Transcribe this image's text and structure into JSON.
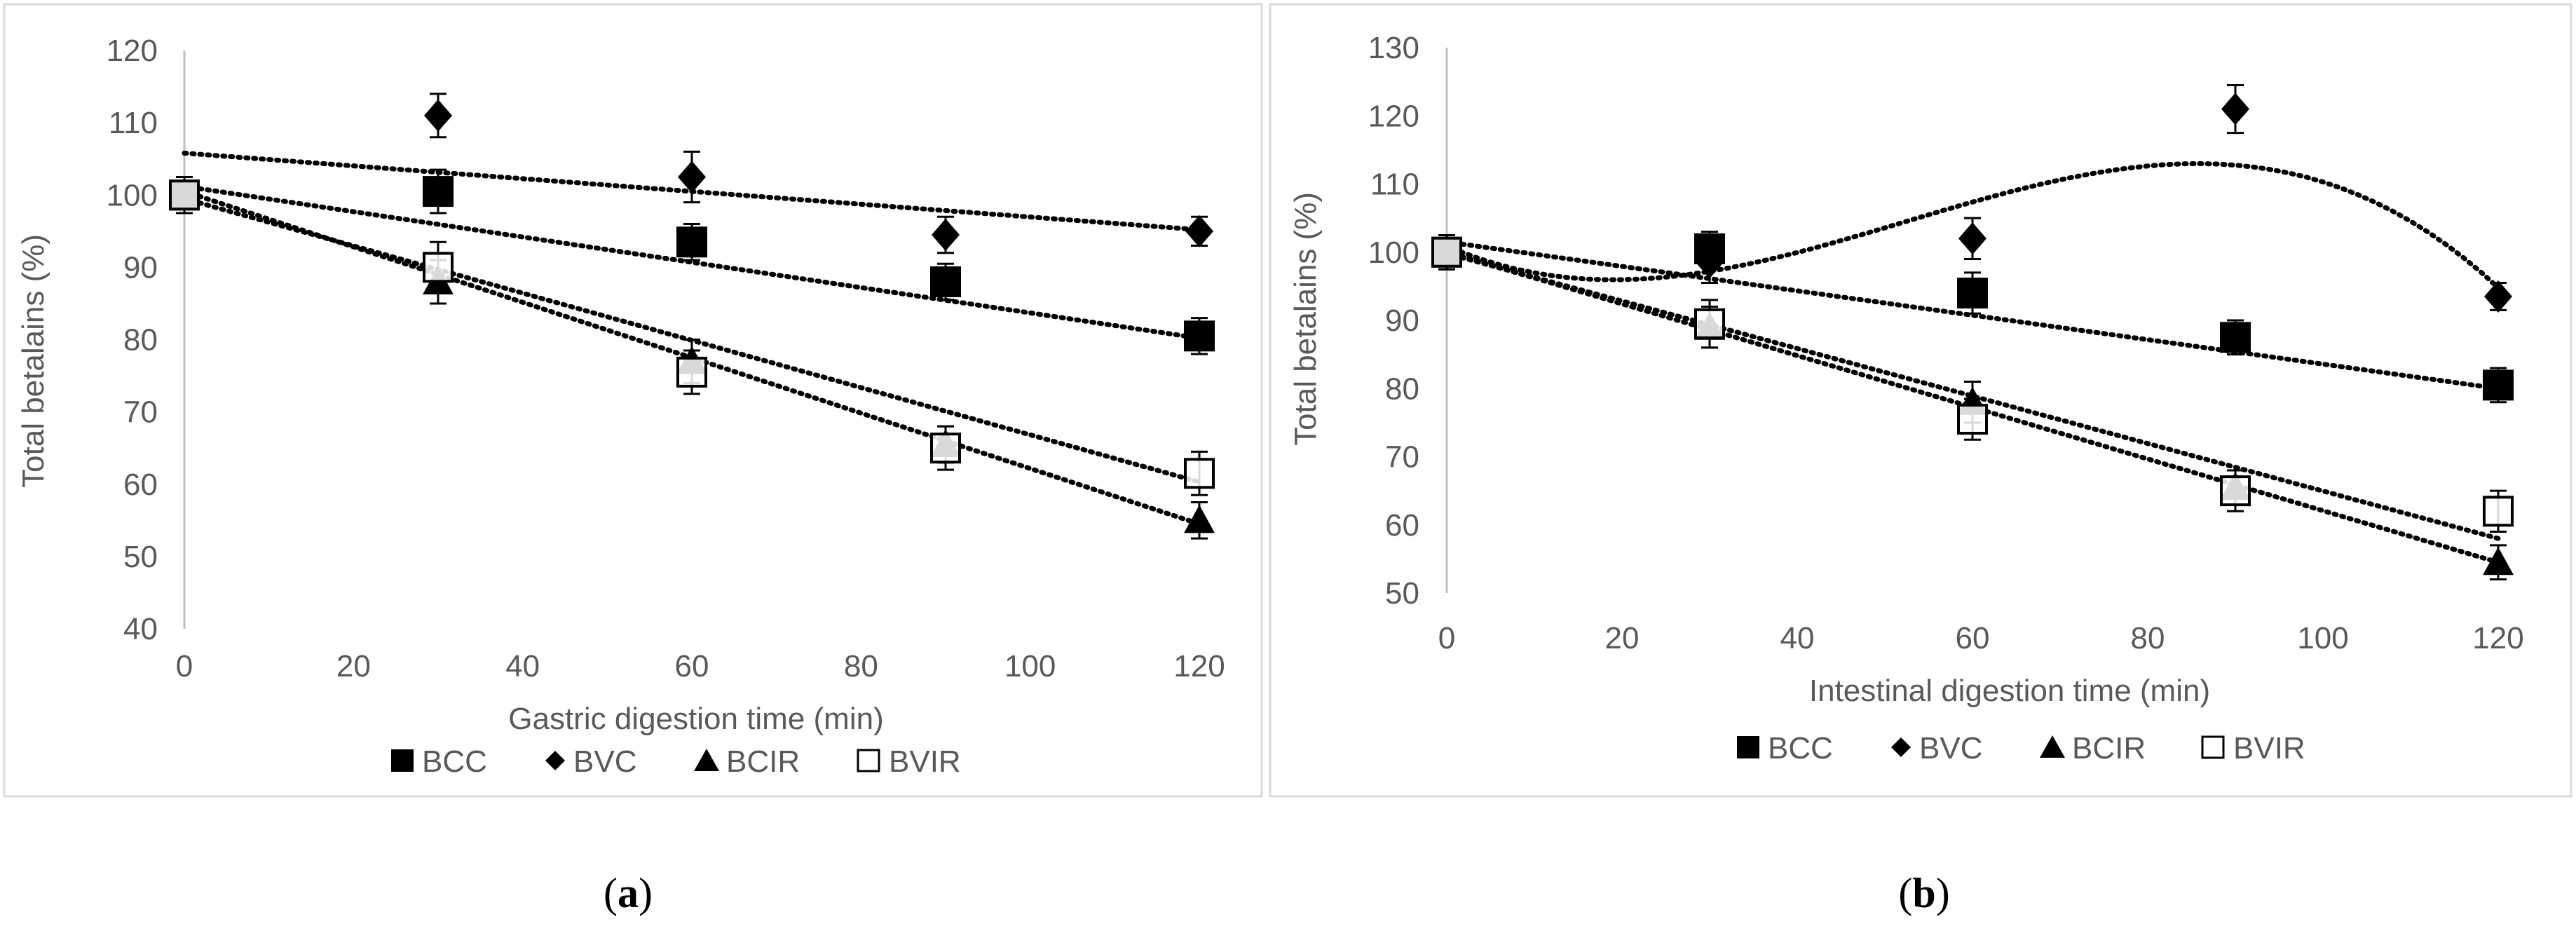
{
  "chart_data": [
    {
      "id": "a",
      "type": "scatter",
      "caption_letter": "a",
      "xlabel": "Gastric digestion time (min)",
      "ylabel": "Total betalains (%)",
      "xlim": [
        0,
        120
      ],
      "ylim": [
        40,
        120
      ],
      "xticks": [
        0,
        20,
        40,
        60,
        80,
        100,
        120
      ],
      "yticks": [
        40,
        50,
        60,
        70,
        80,
        90,
        100,
        110,
        120
      ],
      "legend_position": "bottom",
      "series": [
        {
          "name": "BCC",
          "marker": "filled-square",
          "x": [
            0,
            30,
            60,
            90,
            120
          ],
          "y": [
            100,
            100.5,
            93.5,
            88,
            80.5
          ],
          "err": [
            2.5,
            3,
            2.5,
            2.5,
            2.5
          ],
          "trend": {
            "kind": "linear",
            "x": [
              0,
              120
            ],
            "y": [
              101.2,
              80.2
            ]
          }
        },
        {
          "name": "BVC",
          "marker": "filled-diamond",
          "x": [
            0,
            30,
            60,
            90,
            120
          ],
          "y": [
            100,
            111,
            102.5,
            94.5,
            95
          ],
          "err": [
            2.5,
            3,
            3.5,
            2.5,
            2
          ],
          "trend": {
            "kind": "linear",
            "x": [
              0,
              120
            ],
            "y": [
              105.8,
              95.2
            ]
          }
        },
        {
          "name": "BCIR",
          "marker": "filled-triangle",
          "x": [
            0,
            30,
            60,
            90,
            120
          ],
          "y": [
            100,
            88,
            77,
            65.5,
            55
          ],
          "err": [
            2.5,
            3,
            3,
            2.5,
            2.5
          ],
          "trend": {
            "kind": "linear",
            "x": [
              0,
              120
            ],
            "y": [
              100.5,
              54.5
            ]
          }
        },
        {
          "name": "BVIR",
          "marker": "open-square",
          "x": [
            0,
            30,
            60,
            90,
            120
          ],
          "y": [
            100,
            90,
            75.5,
            65,
            61.5
          ],
          "err": [
            2.5,
            3.5,
            3,
            3,
            3
          ],
          "trend": {
            "kind": "linear",
            "x": [
              0,
              120
            ],
            "y": [
              99.5,
              60.3
            ]
          }
        }
      ]
    },
    {
      "id": "b",
      "type": "scatter",
      "caption_letter": "b",
      "xlabel": "Intestinal digestion time (min)",
      "ylabel": "Total betalains (%)",
      "xlim": [
        0,
        120
      ],
      "ylim": [
        50,
        130
      ],
      "xticks": [
        0,
        20,
        40,
        60,
        80,
        100,
        120
      ],
      "yticks": [
        50,
        60,
        70,
        80,
        90,
        100,
        110,
        120,
        130
      ],
      "legend_position": "bottom",
      "series": [
        {
          "name": "BCC",
          "marker": "filled-square",
          "x": [
            0,
            30,
            60,
            90,
            120
          ],
          "y": [
            100,
            100.5,
            94,
            87.5,
            80.5
          ],
          "err": [
            2.5,
            2.5,
            3,
            2.5,
            2.5
          ],
          "trend": {
            "kind": "linear",
            "x": [
              0,
              120
            ],
            "y": [
              101.5,
              80
            ]
          }
        },
        {
          "name": "BVC",
          "marker": "filled-diamond",
          "x": [
            0,
            30,
            60,
            90,
            120
          ],
          "y": [
            100,
            98.5,
            102,
            121,
            93.5
          ],
          "err": [
            2.5,
            3,
            3,
            3.5,
            2
          ],
          "trend": {
            "kind": "polynomial",
            "coefficients": [
              100.9,
              -0.562,
              0.01806,
              -0.000115
            ]
          }
        },
        {
          "name": "BCIR",
          "marker": "filled-triangle",
          "x": [
            0,
            30,
            60,
            90,
            120
          ],
          "y": [
            100,
            89,
            78,
            65.5,
            54.5
          ],
          "err": [
            2.5,
            3,
            3,
            2.5,
            2.5
          ],
          "trend": {
            "kind": "linear",
            "x": [
              0,
              120
            ],
            "y": [
              100,
              54.5
            ]
          }
        },
        {
          "name": "BVIR",
          "marker": "open-square",
          "x": [
            0,
            30,
            60,
            90,
            120
          ],
          "y": [
            100,
            89.5,
            75.5,
            65,
            62
          ],
          "err": [
            2.5,
            3.5,
            3,
            3,
            3
          ],
          "trend": {
            "kind": "linear",
            "x": [
              0,
              120
            ],
            "y": [
              99.8,
              58
            ]
          }
        }
      ]
    }
  ]
}
